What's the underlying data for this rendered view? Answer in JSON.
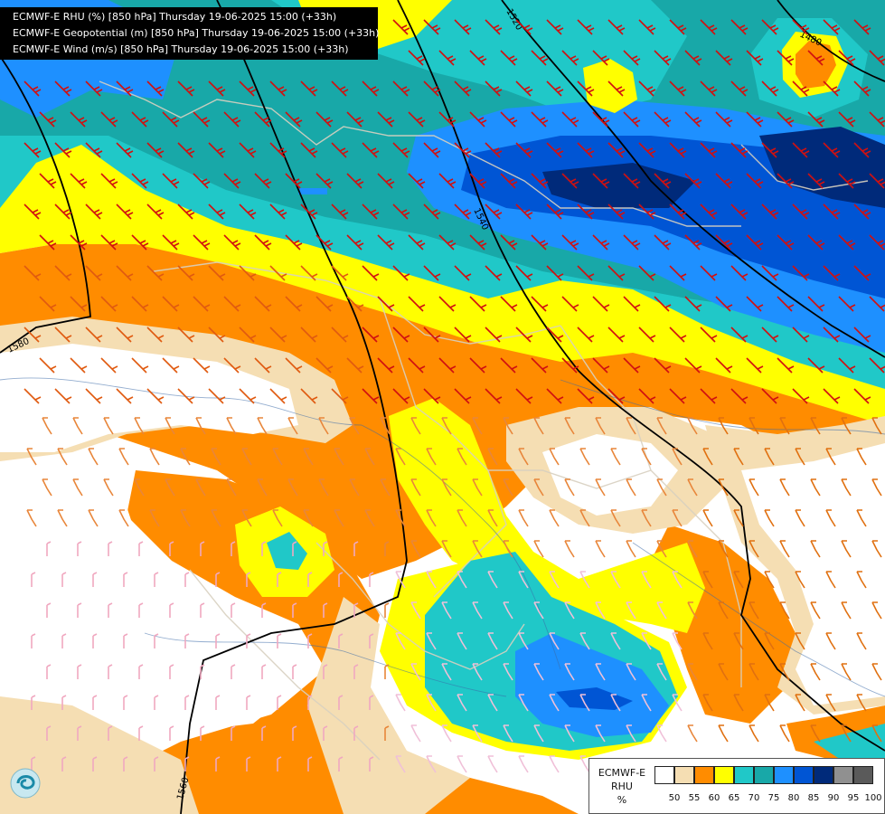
{
  "header": {
    "line1": "ECMWF-E RHU (%) [850 hPa] Thursday 19-06-2025 15:00 (+33h)",
    "line2": "ECMWF-E Geopotential (m) [850 hPa] Thursday 19-06-2025 15:00 (+33h)",
    "line3": "ECMWF-E Wind (m/s) [850 hPa] Thursday 19-06-2025 15:00 (+33h)"
  },
  "legend": {
    "title_line1": "ECMWF-E",
    "title_line2": "RHU",
    "title_line3": "%",
    "levels": [
      "50",
      "55",
      "60",
      "65",
      "70",
      "75",
      "80",
      "85",
      "90",
      "95",
      "100"
    ],
    "colors": [
      "#ffffff",
      "#f5deb3",
      "#ff8c00",
      "#ffff00",
      "#20c8c8",
      "#18a8a8",
      "#1e90ff",
      "#0055d4",
      "#002a7a",
      "#909090",
      "#5a5a5a"
    ]
  },
  "contours": {
    "labels": [
      "1580",
      "1560",
      "1540",
      "1520",
      "1480"
    ]
  },
  "colors": {
    "dry": "#ffffff",
    "tan": "#f5deb3",
    "orange": "#ff8c00",
    "yellow": "#ffff00",
    "cyan": "#20c8c8",
    "teal": "#18a8a8",
    "blue": "#1e90ff",
    "darkblue": "#0055d4",
    "navy": "#002a7a"
  },
  "icons": {
    "logo": "ecmwf-swirl-logo-icon"
  }
}
